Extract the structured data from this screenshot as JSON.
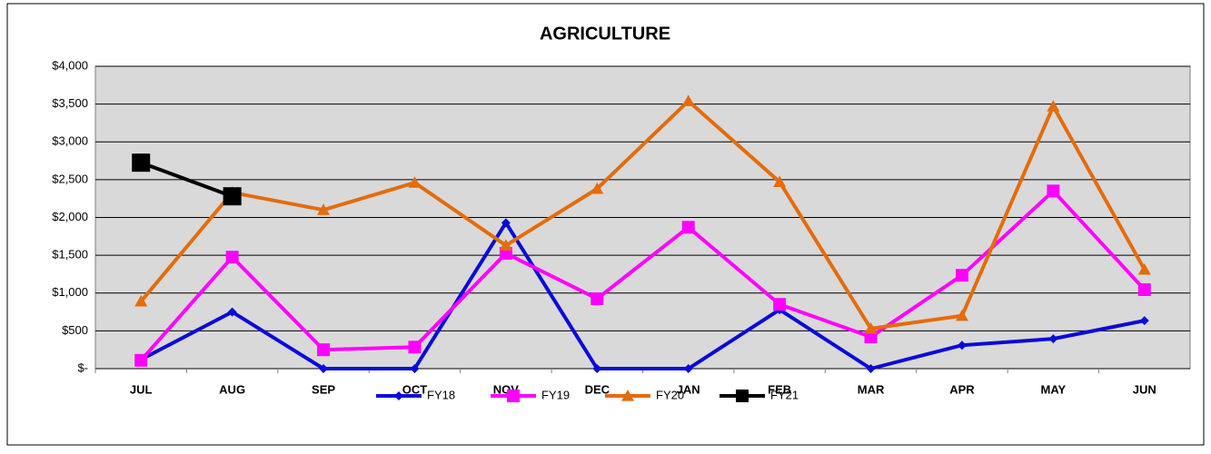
{
  "chart_data": {
    "type": "line",
    "title": "AGRICULTURE",
    "categories": [
      "JUL",
      "AUG",
      "SEP",
      "OCT",
      "NOV",
      "DEC",
      "JAN",
      "FEB",
      "MAR",
      "APR",
      "MAY",
      "JUN"
    ],
    "series": [
      {
        "name": "FY18",
        "color": "#0a0ad8",
        "marker": "diamond",
        "values": [
          120,
          750,
          0,
          0,
          1930,
          0,
          0,
          780,
          0,
          310,
          395,
          635
        ]
      },
      {
        "name": "FY19",
        "color": "#ff00ff",
        "marker": "square",
        "values": [
          110,
          1475,
          250,
          285,
          1525,
          925,
          1870,
          850,
          420,
          1235,
          2350,
          1045
        ]
      },
      {
        "name": "FY20",
        "color": "#e46c0a",
        "marker": "triangle",
        "values": [
          890,
          2330,
          2100,
          2460,
          1630,
          2380,
          3540,
          2470,
          530,
          700,
          3470,
          1310
        ]
      },
      {
        "name": "FY21",
        "color": "#000000",
        "marker": "square",
        "values": [
          2725,
          2280,
          null,
          null,
          null,
          null,
          null,
          null,
          null,
          null,
          null,
          null
        ]
      }
    ],
    "ylim": [
      0,
      4000
    ],
    "yticks": [
      {
        "value": 0,
        "label": "$-"
      },
      {
        "value": 500,
        "label": "$500"
      },
      {
        "value": 1000,
        "label": "$1,000"
      },
      {
        "value": 1500,
        "label": "$1,500"
      },
      {
        "value": 2000,
        "label": "$2,000"
      },
      {
        "value": 2500,
        "label": "$2,500"
      },
      {
        "value": 3000,
        "label": "$3,000"
      },
      {
        "value": 3500,
        "label": "$3,500"
      },
      {
        "value": 4000,
        "label": "$4,000"
      }
    ],
    "grid": true,
    "legend": "bottom"
  }
}
